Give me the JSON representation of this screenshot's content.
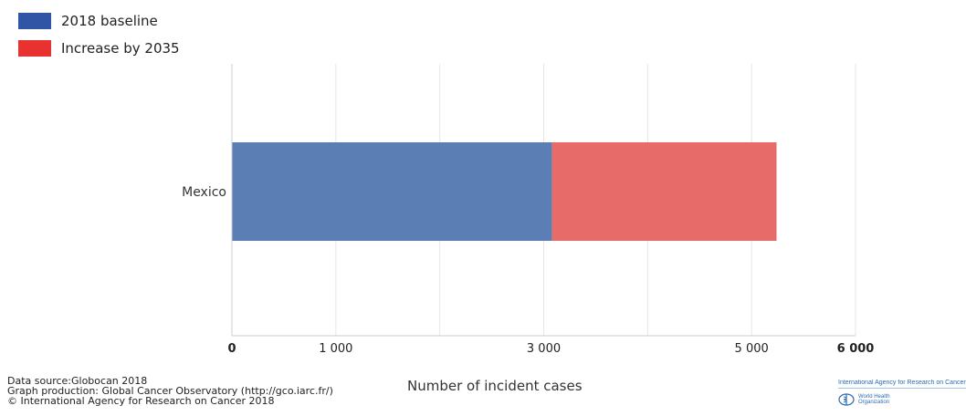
{
  "chart_data": {
    "type": "bar",
    "orientation": "horizontal",
    "stacked": true,
    "categories": [
      "Mexico"
    ],
    "series": [
      {
        "name": "2018 baseline",
        "values": [
          3080
        ],
        "color": "#5b7fb4"
      },
      {
        "name": "Increase by 2035",
        "values": [
          2160
        ],
        "color": "#e76b69"
      }
    ],
    "xlim": [
      0,
      6000
    ],
    "x_ticks": [
      {
        "value": 0,
        "label": "0",
        "bold": true
      },
      {
        "value": 1000,
        "label": "1 000",
        "bold": false
      },
      {
        "value": 3000,
        "label": "3 000",
        "bold": false
      },
      {
        "value": 5000,
        "label": "5 000",
        "bold": false
      },
      {
        "value": 6000,
        "label": "6 000",
        "bold": true
      }
    ],
    "gridlines": [
      1000,
      2000,
      3000,
      4000,
      5000,
      6000
    ],
    "xlabel": "Number of incident cases",
    "grid": true,
    "legend_position": "top-left"
  },
  "legend": {
    "items": [
      {
        "label": "2018 baseline",
        "color": "#2f55a4"
      },
      {
        "label": "Increase by 2035",
        "color": "#e8322f"
      }
    ]
  },
  "source": {
    "line1": "Data source:Globocan 2018",
    "line2": "Graph production: Global Cancer Observatory (http://gco.iarc.fr/)",
    "line3": "© International Agency for Research on Cancer 2018"
  },
  "logos": {
    "iarc": "International Agency for Research on Cancer",
    "who_line1": "World Health",
    "who_line2": "Organization"
  }
}
